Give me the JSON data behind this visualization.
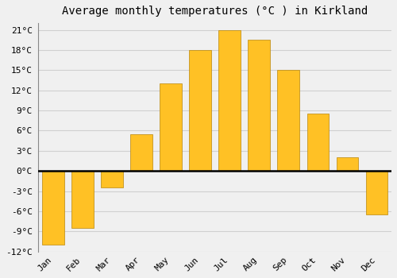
{
  "title": "Average monthly temperatures (°C ) in Kirkland",
  "months": [
    "Jan",
    "Feb",
    "Mar",
    "Apr",
    "May",
    "Jun",
    "Jul",
    "Aug",
    "Sep",
    "Oct",
    "Nov",
    "Dec"
  ],
  "values": [
    -11,
    -8.5,
    -2.5,
    5.5,
    13,
    18,
    21,
    19.5,
    15,
    8.5,
    2,
    -6.5
  ],
  "bar_color": "#FFC125",
  "bar_edge_color": "#B8860B",
  "background_color": "#F0F0F0",
  "grid_color": "#D0D0D0",
  "zero_line_color": "#000000",
  "title_fontsize": 10,
  "tick_fontsize": 8,
  "ylim": [
    -12,
    22
  ],
  "yticks": [
    -12,
    -9,
    -6,
    -3,
    0,
    3,
    6,
    9,
    12,
    15,
    18,
    21
  ]
}
